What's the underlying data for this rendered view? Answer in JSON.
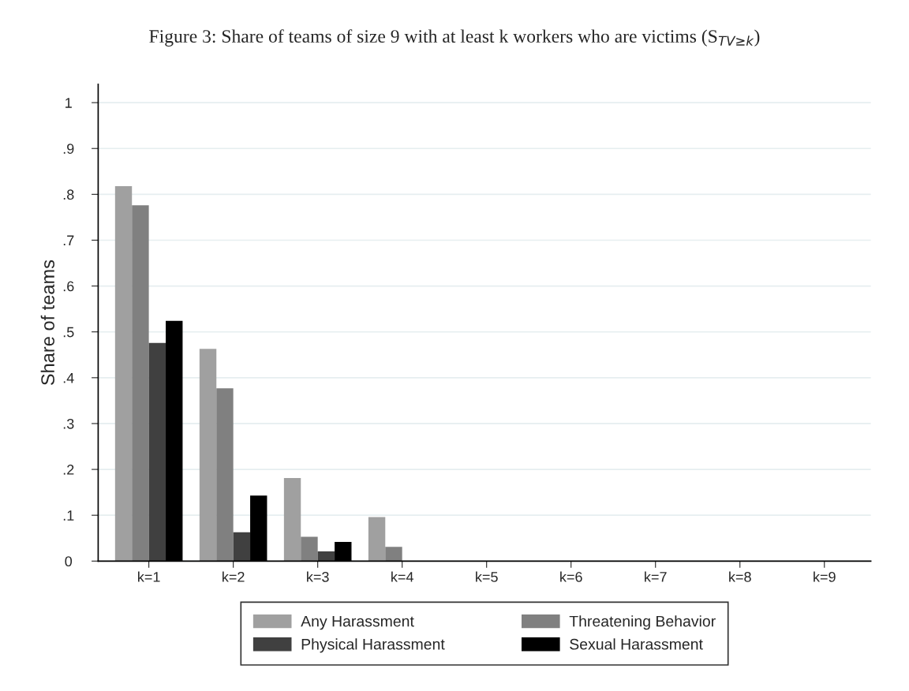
{
  "chart_data": {
    "type": "bar",
    "title": "Figure 3: Share of teams of size 9 with at least k workers who are victims (S$_{TV≥k}$)",
    "ylabel": "Share of teams",
    "categories": [
      "k=1",
      "k=2",
      "k=3",
      "k=4",
      "k=5",
      "k=6",
      "k=7",
      "k=8",
      "k=9"
    ],
    "series": [
      {
        "name": "Any Harassment",
        "color": "#a0a0a0",
        "values": [
          0.818,
          0.463,
          0.181,
          0.096,
          0,
          0,
          0,
          0,
          0
        ]
      },
      {
        "name": "Threatening Behavior",
        "color": "#808080",
        "values": [
          0.776,
          0.377,
          0.053,
          0.031,
          0,
          0,
          0,
          0,
          0
        ]
      },
      {
        "name": "Physical Harassment",
        "color": "#404040",
        "values": [
          0.476,
          0.063,
          0.021,
          0,
          0,
          0,
          0,
          0,
          0
        ]
      },
      {
        "name": "Sexual Harassment",
        "color": "#000000",
        "values": [
          0.524,
          0.143,
          0.042,
          0,
          0,
          0,
          0,
          0,
          0
        ]
      }
    ],
    "ylim": [
      0,
      1.04
    ],
    "yticks": [
      0,
      {
        "value": 0.1,
        "label": ".1"
      },
      {
        "value": 0.2,
        "label": ".2"
      },
      {
        "value": 0.3,
        "label": ".3"
      },
      {
        "value": 0.4,
        "label": ".4"
      },
      {
        "value": 0.5,
        "label": ".5"
      },
      {
        "value": 0.6,
        "label": ".6"
      },
      {
        "value": 0.7,
        "label": ".7"
      },
      {
        "value": 0.8,
        "label": ".8"
      },
      {
        "value": 0.9,
        "label": ".9"
      },
      1
    ],
    "grid": "y",
    "legend": "bottom"
  }
}
